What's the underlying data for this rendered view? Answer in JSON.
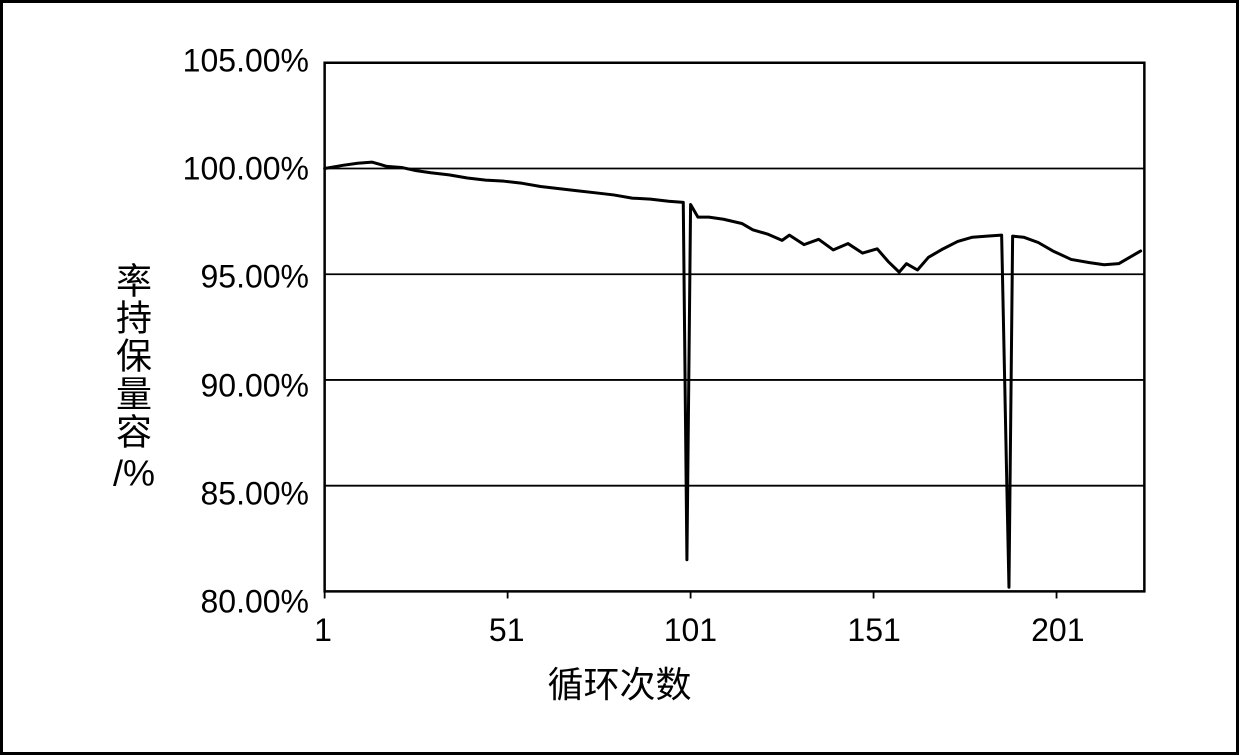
{
  "chart": {
    "type": "line",
    "xlabel": "循环次数",
    "ylabel_chars": [
      "率",
      "持",
      "保",
      "量",
      "容"
    ],
    "ylabel_suffix": "/%",
    "background_color": "#ffffff",
    "outer_border_color": "#000000",
    "outer_border_width": 3,
    "plot_border_color": "#000000",
    "plot_border_width": 2.5,
    "grid_color": "#000000",
    "grid_width": 1.8,
    "line_color": "#000000",
    "line_width": 3.0,
    "axis_font_size": 36,
    "tick_font_size": 32,
    "xlim": [
      1,
      225
    ],
    "ylim": [
      80,
      105
    ],
    "xticks": [
      1,
      51,
      101,
      151,
      201
    ],
    "yticks": [
      {
        "v": 80,
        "label": "80.00%"
      },
      {
        "v": 85,
        "label": "85.00%"
      },
      {
        "v": 90,
        "label": "90.00%"
      },
      {
        "v": 95,
        "label": "95.00%"
      },
      {
        "v": 100,
        "label": "100.00%"
      },
      {
        "v": 105,
        "label": "105.00%"
      }
    ],
    "series": [
      {
        "x": 1,
        "y": 100.0
      },
      {
        "x": 6,
        "y": 100.15
      },
      {
        "x": 10,
        "y": 100.25
      },
      {
        "x": 14,
        "y": 100.3
      },
      {
        "x": 18,
        "y": 100.1
      },
      {
        "x": 22,
        "y": 100.05
      },
      {
        "x": 26,
        "y": 99.9
      },
      {
        "x": 30,
        "y": 99.8
      },
      {
        "x": 35,
        "y": 99.7
      },
      {
        "x": 40,
        "y": 99.55
      },
      {
        "x": 45,
        "y": 99.45
      },
      {
        "x": 50,
        "y": 99.4
      },
      {
        "x": 55,
        "y": 99.3
      },
      {
        "x": 60,
        "y": 99.15
      },
      {
        "x": 65,
        "y": 99.05
      },
      {
        "x": 70,
        "y": 98.95
      },
      {
        "x": 75,
        "y": 98.85
      },
      {
        "x": 80,
        "y": 98.75
      },
      {
        "x": 85,
        "y": 98.6
      },
      {
        "x": 90,
        "y": 98.55
      },
      {
        "x": 95,
        "y": 98.45
      },
      {
        "x": 99,
        "y": 98.4
      },
      {
        "x": 100,
        "y": 81.5
      },
      {
        "x": 101,
        "y": 98.3
      },
      {
        "x": 103,
        "y": 97.7
      },
      {
        "x": 106,
        "y": 97.7
      },
      {
        "x": 110,
        "y": 97.6
      },
      {
        "x": 115,
        "y": 97.4
      },
      {
        "x": 118,
        "y": 97.1
      },
      {
        "x": 122,
        "y": 96.9
      },
      {
        "x": 126,
        "y": 96.6
      },
      {
        "x": 128,
        "y": 96.85
      },
      {
        "x": 132,
        "y": 96.4
      },
      {
        "x": 136,
        "y": 96.65
      },
      {
        "x": 140,
        "y": 96.15
      },
      {
        "x": 144,
        "y": 96.45
      },
      {
        "x": 148,
        "y": 96.0
      },
      {
        "x": 152,
        "y": 96.2
      },
      {
        "x": 155,
        "y": 95.6
      },
      {
        "x": 158,
        "y": 95.1
      },
      {
        "x": 160,
        "y": 95.5
      },
      {
        "x": 163,
        "y": 95.2
      },
      {
        "x": 166,
        "y": 95.8
      },
      {
        "x": 170,
        "y": 96.2
      },
      {
        "x": 174,
        "y": 96.55
      },
      {
        "x": 178,
        "y": 96.75
      },
      {
        "x": 182,
        "y": 96.8
      },
      {
        "x": 186,
        "y": 96.85
      },
      {
        "x": 188,
        "y": 80.2
      },
      {
        "x": 189,
        "y": 96.8
      },
      {
        "x": 192,
        "y": 96.75
      },
      {
        "x": 196,
        "y": 96.5
      },
      {
        "x": 200,
        "y": 96.1
      },
      {
        "x": 205,
        "y": 95.7
      },
      {
        "x": 210,
        "y": 95.55
      },
      {
        "x": 214,
        "y": 95.45
      },
      {
        "x": 218,
        "y": 95.5
      },
      {
        "x": 221,
        "y": 95.8
      },
      {
        "x": 224,
        "y": 96.1
      }
    ]
  }
}
